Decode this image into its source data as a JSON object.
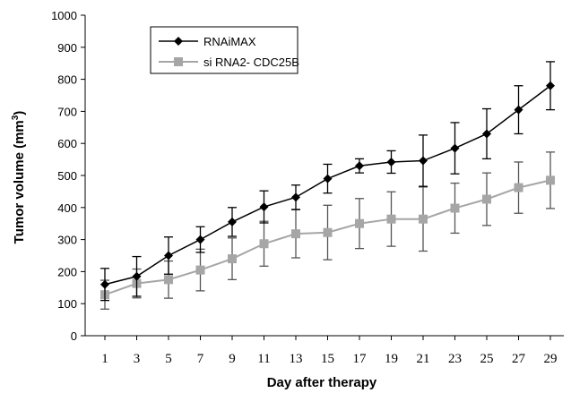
{
  "chart_data": {
    "type": "line",
    "xlabel": "Day after therapy",
    "ylabel": "Tumor volume (mm",
    "ylabel_superscript": "3",
    "ylabel_suffix": ")",
    "ylim": [
      0,
      1000
    ],
    "yticks": [
      0,
      100,
      200,
      300,
      400,
      500,
      600,
      700,
      800,
      900,
      1000
    ],
    "x": [
      1,
      3,
      5,
      7,
      9,
      11,
      13,
      15,
      17,
      19,
      21,
      23,
      25,
      27,
      29
    ],
    "grid": false,
    "legend_position": "top-left",
    "series": [
      {
        "name": "RNAiMAX",
        "marker": "diamond",
        "color": "#000000",
        "values": [
          160,
          185,
          250,
          300,
          355,
          402,
          432,
          490,
          530,
          542,
          546,
          585,
          630,
          705,
          780
        ],
        "errors": [
          50,
          62,
          58,
          40,
          45,
          50,
          38,
          45,
          22,
          35,
          80,
          80,
          78,
          75,
          75
        ]
      },
      {
        "name": "si RNA2- CDC25B",
        "marker": "square",
        "color": "#a6a6a6",
        "values": [
          128,
          163,
          175,
          205,
          240,
          287,
          318,
          322,
          350,
          364,
          364,
          398,
          426,
          462,
          485
        ],
        "errors": [
          45,
          45,
          58,
          65,
          65,
          70,
          75,
          85,
          78,
          85,
          100,
          78,
          82,
          80,
          88
        ]
      }
    ]
  }
}
